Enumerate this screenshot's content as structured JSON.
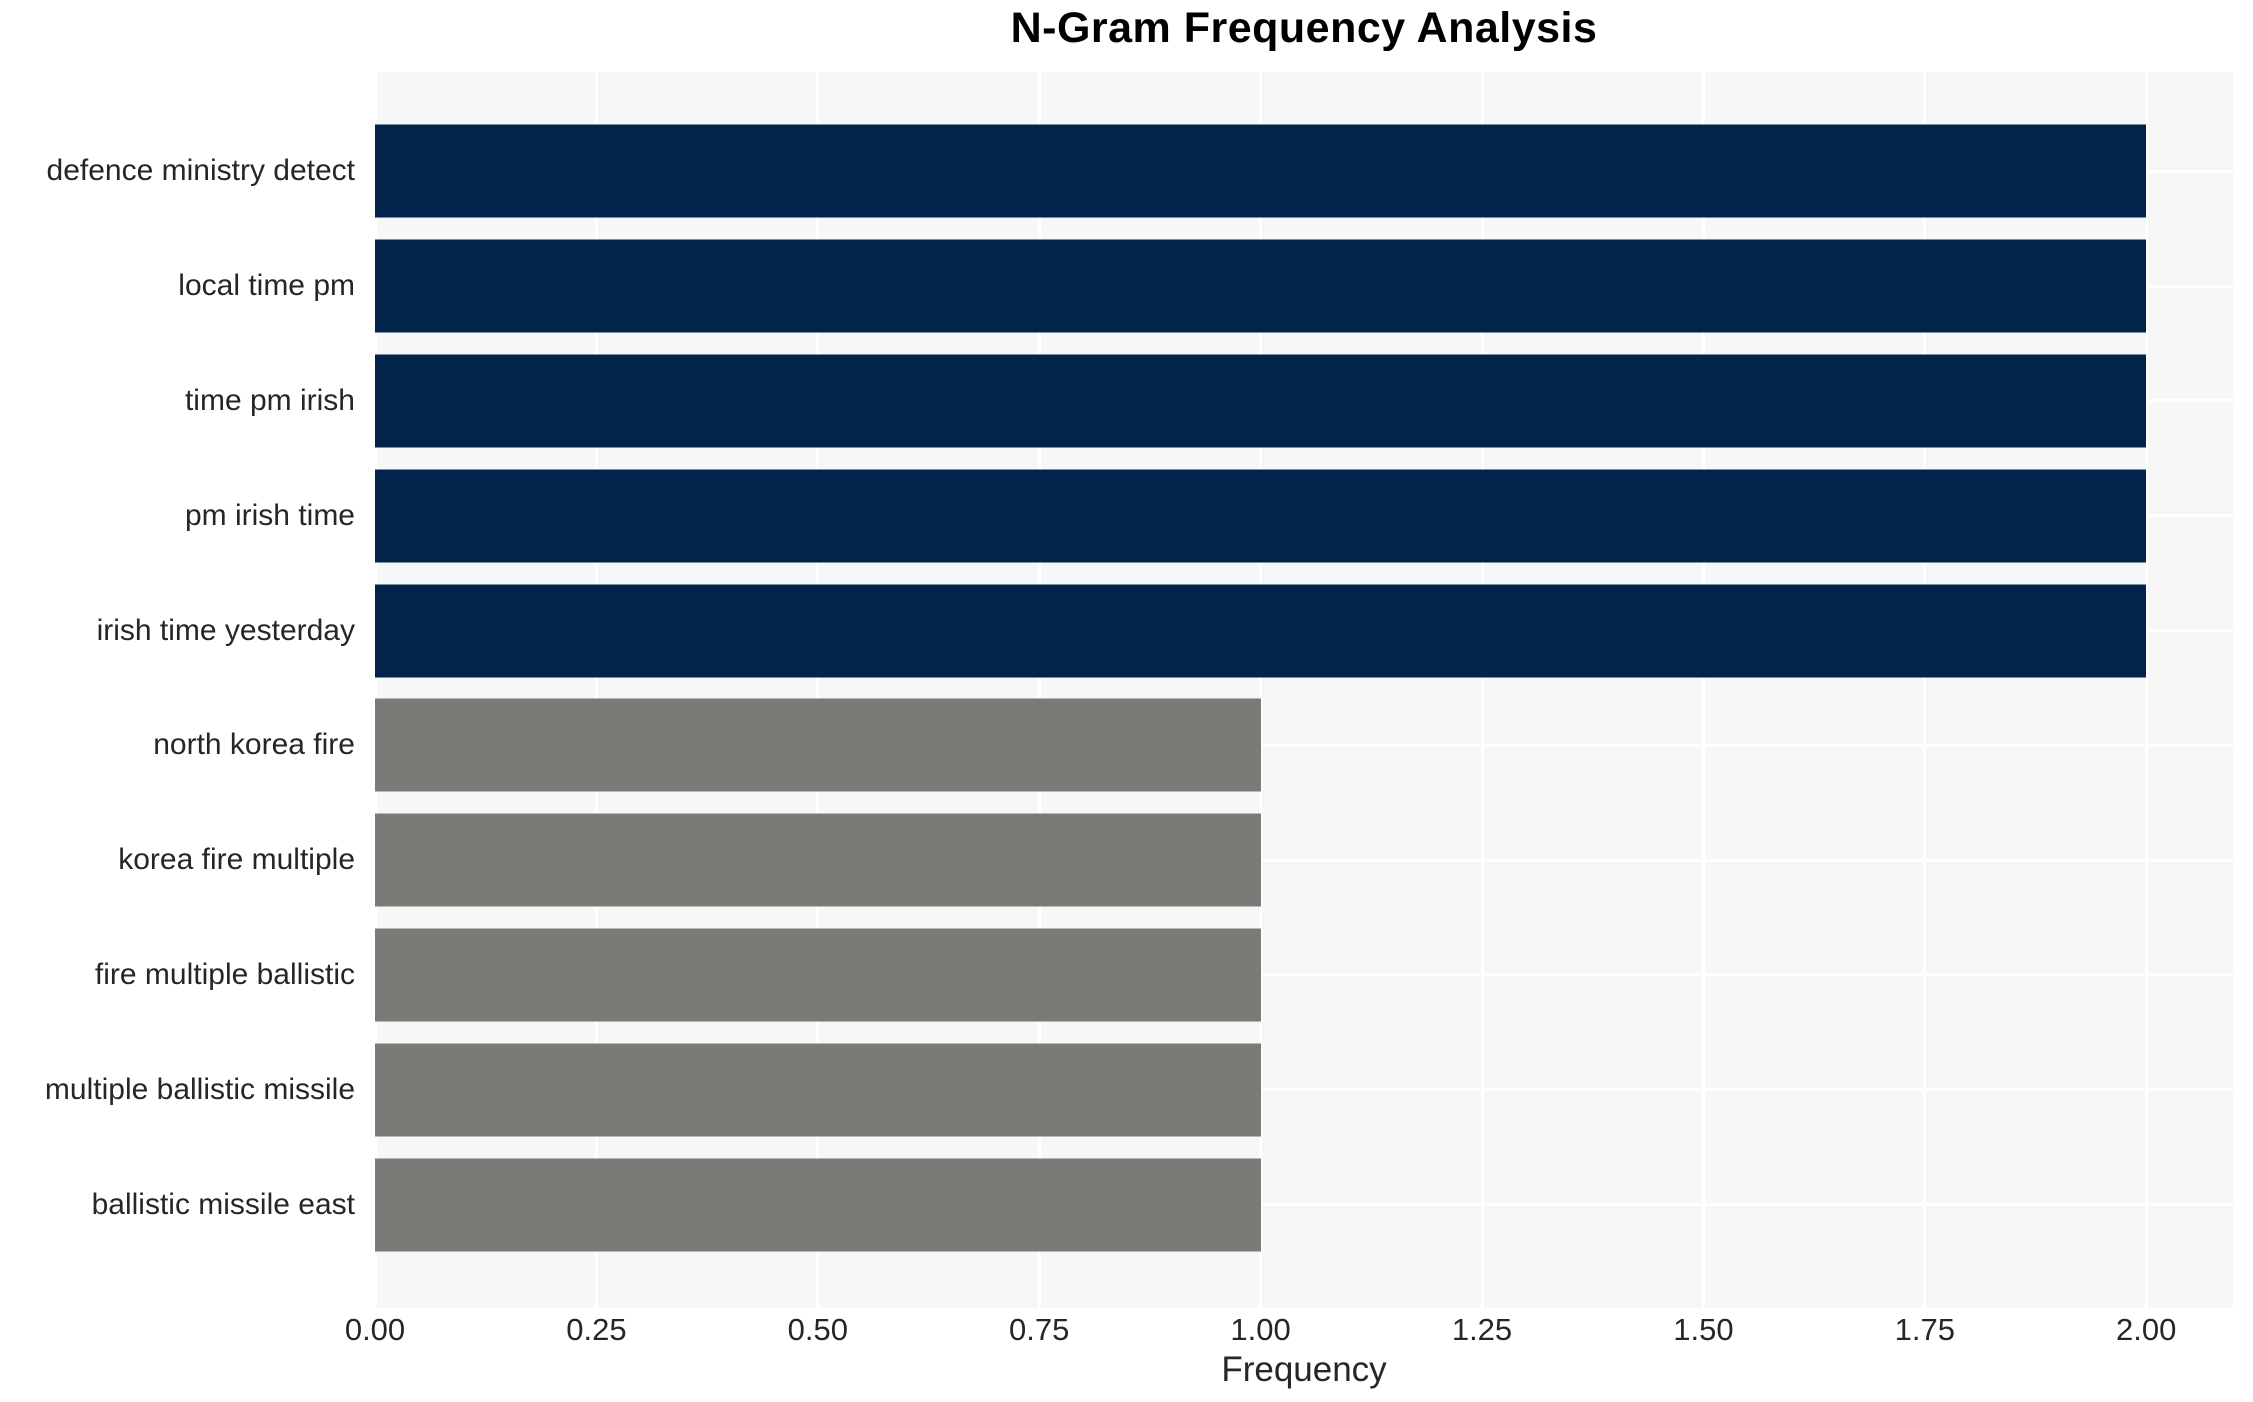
{
  "chart_data": {
    "type": "bar",
    "orientation": "horizontal",
    "title": "N-Gram Frequency Analysis",
    "xlabel": "Frequency",
    "ylabel": "",
    "categories": [
      "defence ministry detect",
      "local time pm",
      "time pm irish",
      "pm irish time",
      "irish time yesterday",
      "north korea fire",
      "korea fire multiple",
      "fire multiple ballistic",
      "multiple ballistic missile",
      "ballistic missile east"
    ],
    "values": [
      2.0,
      2.0,
      2.0,
      2.0,
      2.0,
      1.0,
      1.0,
      1.0,
      1.0,
      1.0
    ],
    "bar_colors": [
      "#02234c",
      "#02234c",
      "#02234c",
      "#02234c",
      "#02234c",
      "#7b7a77",
      "#7b7a77",
      "#7b7a77",
      "#7b7a77",
      "#7b7a77"
    ],
    "x_ticks": [
      {
        "value": 0.0,
        "label": "0.00"
      },
      {
        "value": 0.25,
        "label": "0.25"
      },
      {
        "value": 0.5,
        "label": "0.50"
      },
      {
        "value": 0.75,
        "label": "0.75"
      },
      {
        "value": 1.0,
        "label": "1.00"
      },
      {
        "value": 1.25,
        "label": "1.25"
      },
      {
        "value": 1.5,
        "label": "1.50"
      },
      {
        "value": 1.75,
        "label": "1.75"
      },
      {
        "value": 2.0,
        "label": "2.00"
      }
    ],
    "xlim": [
      0,
      2.098
    ],
    "grid": true,
    "legend": false,
    "colors": {
      "plot_background": "#f7f7f7",
      "figure_background": "#ffffff",
      "gridline": "#ffffff",
      "tick_text": "#262626",
      "title_text": "#000000"
    }
  }
}
